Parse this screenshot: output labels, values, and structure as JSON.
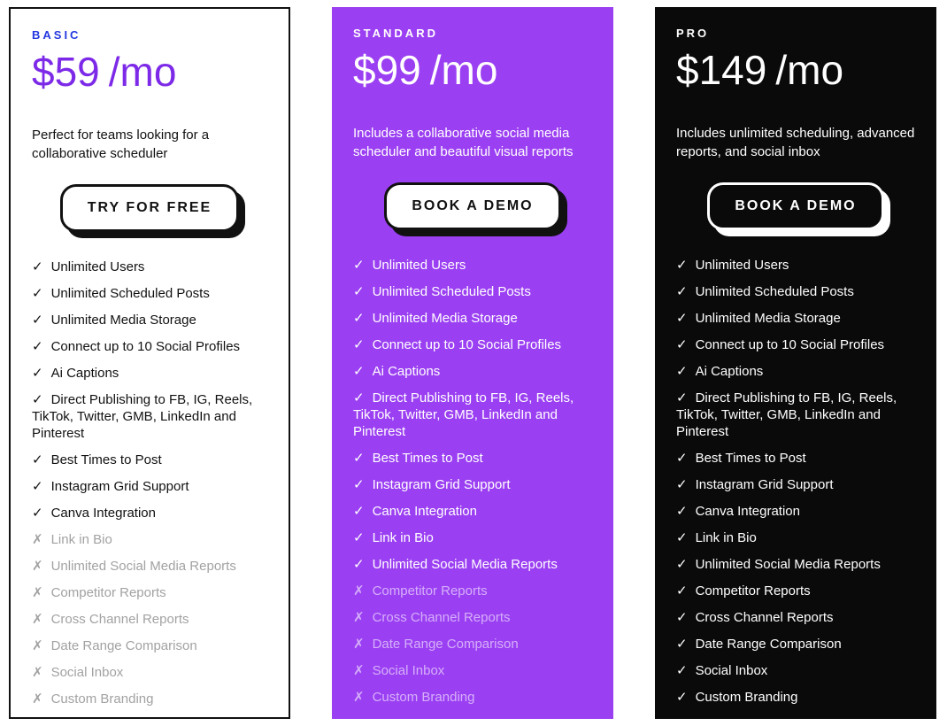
{
  "plans": [
    {
      "id": "basic",
      "label": "BASIC",
      "price": "$59",
      "period": "/mo",
      "description": "Perfect for teams looking for a collaborative scheduler",
      "button_label": "TRY FOR FREE",
      "theme": {
        "bg": "#ffffff",
        "text": "#111111",
        "card_border": "2px solid #111111",
        "label": "#2438E0",
        "price": "#7D2AE8",
        "muted": "#A2A2A2",
        "btn_bg": "#ffffff",
        "btn_text": "#111111",
        "btn_border": "#111111",
        "btn_shadow": "#111111",
        "fw": "400"
      },
      "features": [
        {
          "text": "Unlimited Users",
          "included": true
        },
        {
          "text": "Unlimited Scheduled Posts",
          "included": true
        },
        {
          "text": "Unlimited Media Storage",
          "included": true
        },
        {
          "text": "Connect up to 10 Social Profiles",
          "included": true
        },
        {
          "text": "Ai Captions",
          "included": true
        },
        {
          "text": "Direct Publishing to FB, IG, Reels, TikTok, Twitter, GMB, LinkedIn and Pinterest",
          "included": true
        },
        {
          "text": "Best Times to Post",
          "included": true
        },
        {
          "text": "Instagram Grid Support",
          "included": true
        },
        {
          "text": "Canva Integration",
          "included": true
        },
        {
          "text": "Link in Bio",
          "included": false
        },
        {
          "text": "Unlimited Social Media Reports",
          "included": false
        },
        {
          "text": "Competitor Reports",
          "included": false
        },
        {
          "text": "Cross Channel Reports",
          "included": false
        },
        {
          "text": "Date Range Comparison",
          "included": false
        },
        {
          "text": "Social Inbox",
          "included": false
        },
        {
          "text": "Custom Branding",
          "included": false
        }
      ]
    },
    {
      "id": "standard",
      "label": "STANDARD",
      "price": "$99",
      "period": "/mo",
      "description": "Includes a collaborative social media scheduler and beautiful visual reports",
      "button_label": "BOOK A DEMO",
      "theme": {
        "bg": "#9B3FF2",
        "text": "#ffffff",
        "card_border": "none",
        "label": "#ffffff",
        "price": "#ffffff",
        "muted": "rgba(255,255,255,0.58)",
        "btn_bg": "#ffffff",
        "btn_text": "#111111",
        "btn_border": "#111111",
        "btn_shadow": "#111111",
        "fw": "500"
      },
      "features": [
        {
          "text": "Unlimited Users",
          "included": true
        },
        {
          "text": "Unlimited Scheduled Posts",
          "included": true
        },
        {
          "text": "Unlimited Media Storage",
          "included": true
        },
        {
          "text": "Connect up to 10 Social Profiles",
          "included": true
        },
        {
          "text": "Ai Captions",
          "included": true
        },
        {
          "text": "Direct Publishing to FB, IG, Reels, TikTok, Twitter, GMB, LinkedIn and Pinterest",
          "included": true
        },
        {
          "text": "Best Times to Post",
          "included": true
        },
        {
          "text": "Instagram Grid Support",
          "included": true
        },
        {
          "text": "Canva Integration",
          "included": true
        },
        {
          "text": "Link in Bio",
          "included": true
        },
        {
          "text": "Unlimited Social Media Reports",
          "included": true
        },
        {
          "text": "Competitor Reports",
          "included": false
        },
        {
          "text": "Cross Channel Reports",
          "included": false
        },
        {
          "text": "Date Range Comparison",
          "included": false
        },
        {
          "text": "Social Inbox",
          "included": false
        },
        {
          "text": "Custom Branding",
          "included": false
        }
      ]
    },
    {
      "id": "pro",
      "label": "PRO",
      "price": "$149",
      "period": "/mo",
      "description": "Includes unlimited scheduling, advanced reports, and social inbox",
      "button_label": "BOOK A DEMO",
      "theme": {
        "bg": "#0A0A0A",
        "text": "#ffffff",
        "card_border": "none",
        "label": "#ffffff",
        "price": "#ffffff",
        "muted": "rgba(255,255,255,0.58)",
        "btn_bg": "#0A0A0A",
        "btn_text": "#ffffff",
        "btn_border": "#ffffff",
        "btn_shadow": "#ffffff",
        "fw": "500"
      },
      "features": [
        {
          "text": "Unlimited Users",
          "included": true
        },
        {
          "text": "Unlimited Scheduled Posts",
          "included": true
        },
        {
          "text": "Unlimited Media Storage",
          "included": true
        },
        {
          "text": "Connect up to 10 Social Profiles",
          "included": true
        },
        {
          "text": "Ai Captions",
          "included": true
        },
        {
          "text": "Direct Publishing to FB, IG, Reels, TikTok, Twitter, GMB, LinkedIn and Pinterest",
          "included": true
        },
        {
          "text": "Best Times to Post",
          "included": true
        },
        {
          "text": "Instagram Grid Support",
          "included": true
        },
        {
          "text": "Canva Integration",
          "included": true
        },
        {
          "text": "Link in Bio",
          "included": true
        },
        {
          "text": "Unlimited Social Media Reports",
          "included": true
        },
        {
          "text": "Competitor Reports",
          "included": true
        },
        {
          "text": "Cross Channel Reports",
          "included": true
        },
        {
          "text": "Date Range Comparison",
          "included": true
        },
        {
          "text": "Social Inbox",
          "included": true
        },
        {
          "text": "Custom Branding",
          "included": true
        }
      ]
    }
  ],
  "icons": {
    "check": "✓",
    "cross": "✗"
  }
}
